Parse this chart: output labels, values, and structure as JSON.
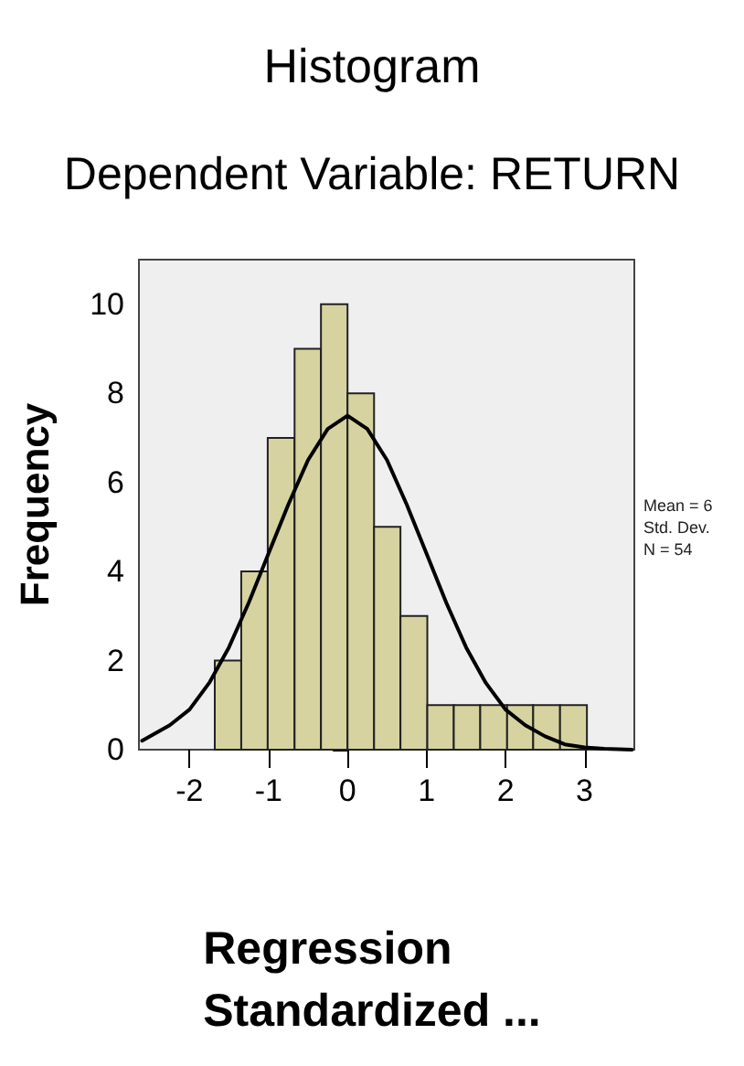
{
  "chart_data": {
    "type": "histogram",
    "title": "Histogram",
    "subtitle": "Dependent Variable: RETURN",
    "xlabel": "Regression\nStandardized ...",
    "ylabel": "Frequency",
    "bins": [
      -1.68,
      -1.345,
      -1.01,
      -0.67,
      -0.336,
      0,
      0.336,
      0.67,
      1.01,
      1.345,
      1.68,
      2.02,
      2.35,
      2.69,
      3.03
    ],
    "values": [
      2,
      4,
      7,
      9,
      10,
      8,
      5,
      3,
      1,
      1,
      1,
      1,
      1,
      1
    ],
    "color": "#d6d3a0",
    "series": [
      {
        "type": "line",
        "color": "#000000",
        "x": [
          -2.6,
          -2.25,
          -2,
          -1.75,
          -1.5,
          -1.25,
          -1,
          -0.75,
          -0.5,
          -0.25,
          0,
          0.25,
          0.5,
          0.75,
          1,
          1.25,
          1.5,
          1.75,
          2,
          2.25,
          2.5,
          2.75,
          3,
          3.25,
          3.6
        ],
        "values": [
          0.2,
          0.55,
          0.9,
          1.5,
          2.3,
          3.3,
          4.4,
          5.5,
          6.5,
          7.2,
          7.5,
          7.2,
          6.5,
          5.5,
          4.4,
          3.3,
          2.3,
          1.5,
          0.9,
          0.55,
          0.3,
          0.12,
          0.05,
          0.02,
          0
        ]
      }
    ],
    "xlim": [
      -2.64,
      3.63
    ],
    "ylim": [
      0,
      11
    ],
    "xticks": [
      -2,
      -1,
      0,
      1,
      2,
      3
    ],
    "yticks": [
      0,
      2,
      4,
      6,
      8,
      10
    ],
    "grid": false,
    "annotations": [
      "Mean = 6",
      "Std. Dev.",
      "N = 54"
    ]
  }
}
